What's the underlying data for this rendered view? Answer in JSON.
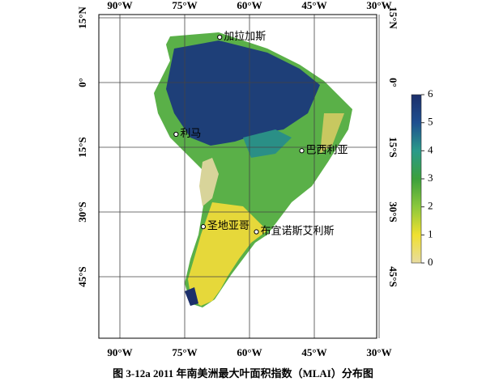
{
  "map": {
    "lon_ticks": [
      {
        "value": -90,
        "label": "90°W"
      },
      {
        "value": -75,
        "label": "75°W"
      },
      {
        "value": -60,
        "label": "60°W"
      },
      {
        "value": -45,
        "label": "45°W"
      },
      {
        "value": -30,
        "label": "30°W"
      }
    ],
    "lat_ticks": [
      {
        "value": 15,
        "label": "15°N"
      },
      {
        "value": 0,
        "label": "0°"
      },
      {
        "value": -15,
        "label": "15°S"
      },
      {
        "value": -30,
        "label": "30°S"
      },
      {
        "value": -45,
        "label": "45°S"
      }
    ],
    "cities": [
      {
        "name": "加拉加斯",
        "lon": -66.9,
        "lat": 10.5
      },
      {
        "name": "利马",
        "lon": -77.0,
        "lat": -12.0
      },
      {
        "name": "巴西利亚",
        "lon": -47.9,
        "lat": -15.8
      },
      {
        "name": "圣地亚哥",
        "lon": -70.7,
        "lat": -33.4
      },
      {
        "name": "布宜诺斯艾利斯",
        "lon": -58.4,
        "lat": -34.6
      }
    ]
  },
  "colorbar": {
    "lim": [
      0,
      6
    ],
    "ticks": [
      0,
      1,
      2,
      3,
      4,
      5,
      6
    ],
    "colors": [
      "#e8dca0",
      "#f0e030",
      "#8cc83c",
      "#3ca03c",
      "#2a9a8a",
      "#1f4f8f",
      "#1c2f6a"
    ]
  },
  "caption": "图 3-12a 2011 年南美洲最大叶面积指数（MLAI）分布图"
}
